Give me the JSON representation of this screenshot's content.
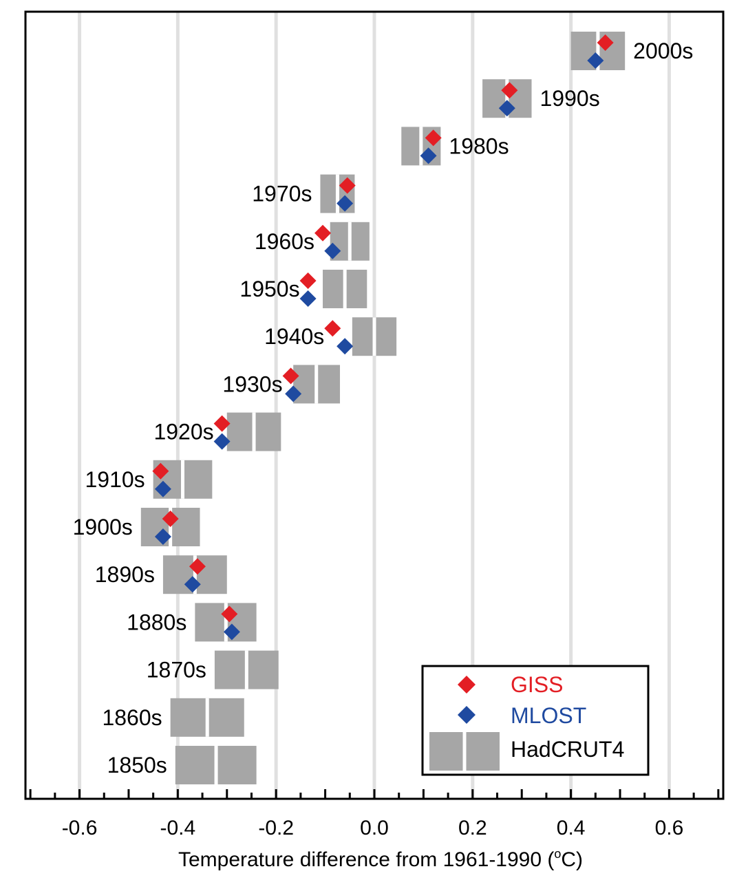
{
  "chart_data": {
    "type": "scatter",
    "title": "",
    "xlabel": "Temperature difference from 1961-1990 (",
    "xlabel_degree_symbol": "o",
    "xlabel_unit_suffix": "C)",
    "xlim": [
      -0.71,
      0.71
    ],
    "xticks": [
      -0.6,
      -0.4,
      -0.2,
      0.0,
      0.2,
      0.4,
      0.6
    ],
    "xtick_labels": [
      "-0.6",
      "-0.4",
      "-0.2",
      "0.0",
      "0.2",
      "0.4",
      "0.6"
    ],
    "grid": "vertical",
    "legend_position": "bottom-right",
    "decades": [
      "2000s",
      "1990s",
      "1980s",
      "1970s",
      "1960s",
      "1950s",
      "1940s",
      "1930s",
      "1920s",
      "1910s",
      "1900s",
      "1890s",
      "1880s",
      "1870s",
      "1860s",
      "1850s"
    ],
    "label_side": [
      "right",
      "right",
      "right",
      "left",
      "left",
      "left",
      "left",
      "left",
      "left",
      "left",
      "left",
      "left",
      "left",
      "left",
      "left",
      "left"
    ],
    "series": [
      {
        "name": "GISS",
        "color": "#e31e24",
        "values": [
          0.47,
          0.275,
          0.12,
          -0.055,
          -0.105,
          -0.135,
          -0.085,
          -0.17,
          -0.31,
          -0.435,
          -0.415,
          -0.36,
          -0.295,
          null,
          null,
          null
        ]
      },
      {
        "name": "MLOST",
        "color": "#1f4aa0",
        "values": [
          0.45,
          0.27,
          0.11,
          -0.06,
          -0.085,
          -0.135,
          -0.06,
          -0.165,
          -0.31,
          -0.43,
          -0.43,
          -0.37,
          -0.29,
          null,
          null,
          null
        ]
      },
      {
        "name": "HadCRUT4",
        "color": "#a6a6a6",
        "range_low": [
          0.4,
          0.22,
          0.055,
          -0.11,
          -0.09,
          -0.105,
          -0.045,
          -0.165,
          -0.3,
          -0.45,
          -0.475,
          -0.43,
          -0.365,
          -0.325,
          -0.415,
          -0.405
        ],
        "range_high": [
          0.51,
          0.32,
          0.135,
          -0.04,
          -0.01,
          -0.015,
          0.045,
          -0.07,
          -0.19,
          -0.33,
          -0.355,
          -0.3,
          -0.24,
          -0.195,
          -0.265,
          -0.24
        ],
        "center": [
          0.455,
          0.27,
          0.095,
          -0.075,
          -0.05,
          -0.06,
          0.0,
          -0.118,
          -0.245,
          -0.39,
          -0.415,
          -0.365,
          -0.302,
          -0.26,
          -0.34,
          -0.322
        ]
      }
    ]
  }
}
